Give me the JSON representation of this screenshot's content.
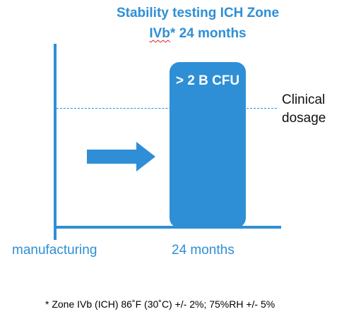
{
  "title": {
    "line1": "Stability testing ICH Zone",
    "line2_underlined": "IVb",
    "line2_rest": "* 24 months"
  },
  "bar_label": "> 2 B CFU",
  "dashed_line_label": {
    "line1": "Clinical",
    "line2": "dosage"
  },
  "x_labels": {
    "start": "manufacturing",
    "end": "24 months"
  },
  "footnote": "* Zone IVb (ICH) 86˚F (30˚C) +/- 2%; 75%RH +/- 5%",
  "colors": {
    "accent": "#2e8fd6",
    "spellcheck_underline": "#e02020"
  },
  "icons": {
    "arrow": "right-arrow-icon"
  }
}
